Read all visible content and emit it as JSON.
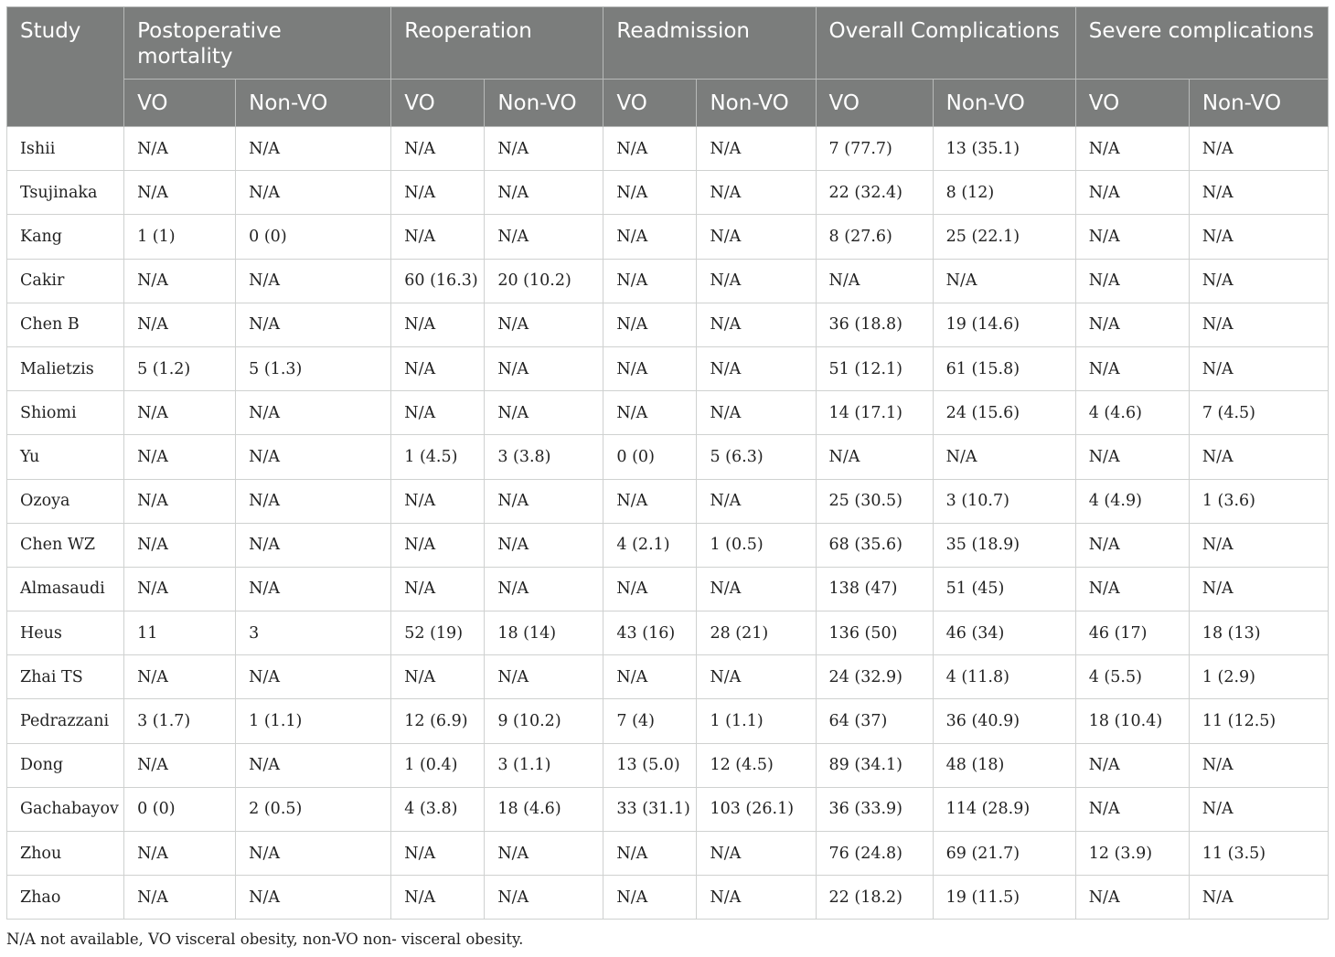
{
  "headers": {
    "study": "Study",
    "groups": [
      "Postoperative mortality",
      "Reoperation",
      "Readmission",
      "Overall Complications",
      "Severe complications"
    ],
    "sub": [
      "VO",
      "Non-VO",
      "VO",
      "Non-VO",
      "VO",
      "Non-VO",
      "VO",
      "Non-VO",
      "VO",
      "Non-VO"
    ]
  },
  "rows": [
    [
      "Ishii",
      "N/A",
      "N/A",
      "N/A",
      "N/A",
      "N/A",
      "N/A",
      "7 (77.7)",
      "13 (35.1)",
      "N/A",
      "N/A"
    ],
    [
      "Tsujinaka",
      "N/A",
      "N/A",
      "N/A",
      "N/A",
      "N/A",
      "N/A",
      "22 (32.4)",
      "8 (12)",
      "N/A",
      "N/A"
    ],
    [
      "Kang",
      "1 (1)",
      "0 (0)",
      "N/A",
      "N/A",
      "N/A",
      "N/A",
      "8 (27.6)",
      "25 (22.1)",
      "N/A",
      "N/A"
    ],
    [
      "Cakir",
      "N/A",
      "N/A",
      "60 (16.3)",
      "20 (10.2)",
      "N/A",
      "N/A",
      "N/A",
      "N/A",
      "N/A",
      "N/A"
    ],
    [
      "Chen B",
      "N/A",
      "N/A",
      "N/A",
      "N/A",
      "N/A",
      "N/A",
      "36 (18.8)",
      "19 (14.6)",
      "N/A",
      "N/A"
    ],
    [
      "Malietzis",
      "5 (1.2)",
      "5 (1.3)",
      "N/A",
      "N/A",
      "N/A",
      "N/A",
      "51 (12.1)",
      "61 (15.8)",
      "N/A",
      "N/A"
    ],
    [
      "Shiomi",
      "N/A",
      "N/A",
      "N/A",
      "N/A",
      "N/A",
      "N/A",
      "14 (17.1)",
      "24 (15.6)",
      "4 (4.6)",
      "7 (4.5)"
    ],
    [
      "Yu",
      "N/A",
      "N/A",
      "1 (4.5)",
      "3 (3.8)",
      "0 (0)",
      "5 (6.3)",
      "N/A",
      "N/A",
      "N/A",
      "N/A"
    ],
    [
      "Ozoya",
      "N/A",
      "N/A",
      "N/A",
      "N/A",
      "N/A",
      "N/A",
      "25 (30.5)",
      "3 (10.7)",
      "4 (4.9)",
      "1 (3.6)"
    ],
    [
      "Chen WZ",
      "N/A",
      "N/A",
      "N/A",
      "N/A",
      "4 (2.1)",
      "1 (0.5)",
      "68 (35.6)",
      "35 (18.9)",
      "N/A",
      "N/A"
    ],
    [
      "Almasaudi",
      "N/A",
      "N/A",
      "N/A",
      "N/A",
      "N/A",
      "N/A",
      "138 (47)",
      "51 (45)",
      "N/A",
      "N/A"
    ],
    [
      "Heus",
      "11",
      "3",
      "52 (19)",
      "18 (14)",
      "43 (16)",
      "28 (21)",
      "136 (50)",
      "46 (34)",
      "46 (17)",
      "18 (13)"
    ],
    [
      "Zhai TS",
      "N/A",
      "N/A",
      "N/A",
      "N/A",
      "N/A",
      "N/A",
      "24 (32.9)",
      "4 (11.8)",
      "4 (5.5)",
      "1 (2.9)"
    ],
    [
      "Pedrazzani",
      "3 (1.7)",
      "1 (1.1)",
      "12 (6.9)",
      "9 (10.2)",
      "7 (4)",
      "1 (1.1)",
      "64 (37)",
      "36 (40.9)",
      "18 (10.4)",
      "11 (12.5)"
    ],
    [
      "Dong",
      "N/A",
      "N/A",
      "1 (0.4)",
      "3 (1.1)",
      "13 (5.0)",
      "12 (4.5)",
      "89 (34.1)",
      "48 (18)",
      "N/A",
      "N/A"
    ],
    [
      "Gachabayov",
      "0 (0)",
      "2 (0.5)",
      "4 (3.8)",
      "18 (4.6)",
      "33 (31.1)",
      "103 (26.1)",
      "36 (33.9)",
      "114 (28.9)",
      "N/A",
      "N/A"
    ],
    [
      "Zhou",
      "N/A",
      "N/A",
      "N/A",
      "N/A",
      "N/A",
      "N/A",
      "76 (24.8)",
      "69 (21.7)",
      "12 (3.9)",
      "11 (3.5)"
    ],
    [
      "Zhao",
      "N/A",
      "N/A",
      "N/A",
      "N/A",
      "N/A",
      "N/A",
      "22 (18.2)",
      "19 (11.5)",
      "N/A",
      "N/A"
    ]
  ],
  "footnote": "N/A not available, VO visceral obesity, non-VO non- visceral obesity.",
  "colors": {
    "header_bg": "#7b7d7c",
    "header_text": "#ffffff",
    "border": "#cfd1d0"
  }
}
